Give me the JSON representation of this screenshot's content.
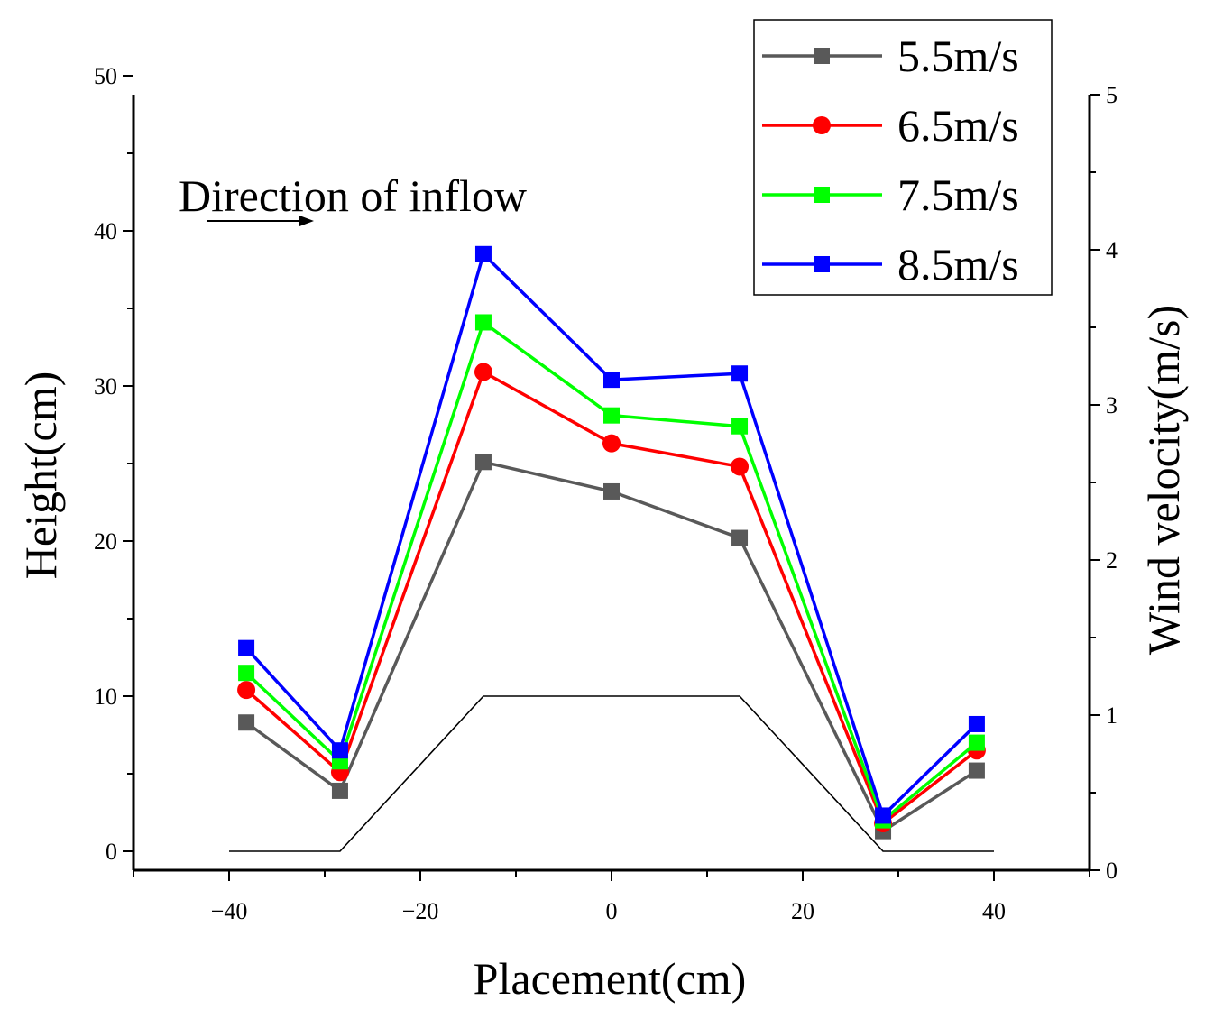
{
  "chart_data": {
    "type": "line",
    "title": "",
    "xlabel": "Placement(cm)",
    "ylabel": "Height(cm)",
    "y2label": "Wind velocity(m/s)",
    "xlim": [
      -50,
      50
    ],
    "ylim": [
      0,
      50
    ],
    "y2lim": [
      0,
      5
    ],
    "x_ticks": [
      -40,
      -20,
      0,
      20,
      40
    ],
    "x_tick_labels": [
      "−40",
      "−20",
      "0",
      "20",
      "40"
    ],
    "y_ticks": [
      0,
      10,
      20,
      30,
      40,
      50
    ],
    "y_tick_labels": [
      "0",
      "10",
      "20",
      "30",
      "40",
      "50"
    ],
    "y2_ticks": [
      0,
      1,
      2,
      3,
      4,
      5
    ],
    "y2_tick_labels": [
      "0",
      "1",
      "2",
      "3",
      "4",
      "5"
    ],
    "annotation": "Direction of inflow",
    "legend_position": "top-right",
    "x": [
      -38.2,
      -28.4,
      -13.4,
      0,
      13.4,
      28.4,
      38.2
    ],
    "series": [
      {
        "name": "5.5m/s",
        "color": "#595959",
        "marker": "square",
        "values": [
          8.3,
          3.9,
          25.1,
          23.2,
          20.2,
          1.3,
          5.2
        ]
      },
      {
        "name": "6.5m/s",
        "color": "#ff0000",
        "marker": "circle",
        "values": [
          10.4,
          5.1,
          30.9,
          26.3,
          24.8,
          1.8,
          6.5
        ]
      },
      {
        "name": "7.5m/s",
        "color": "#00ff00",
        "marker": "square",
        "values": [
          11.5,
          5.8,
          34.1,
          28.1,
          27.4,
          2.0,
          7.0
        ]
      },
      {
        "name": "8.5m/s",
        "color": "#0000ff",
        "marker": "square",
        "values": [
          13.1,
          6.5,
          38.5,
          30.4,
          30.8,
          2.3,
          8.2
        ]
      }
    ],
    "profile": {
      "name": "terrain profile",
      "color": "#000000",
      "x": [
        -40,
        -28.4,
        -13.4,
        13.4,
        28.4,
        40
      ],
      "y": [
        0,
        0,
        10,
        10,
        0,
        0
      ]
    }
  }
}
